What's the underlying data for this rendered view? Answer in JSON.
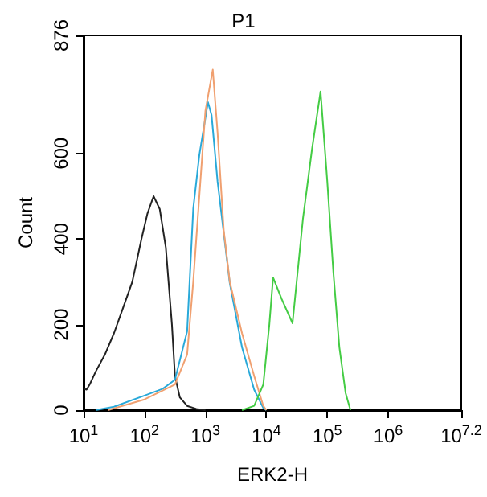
{
  "chart_data": {
    "type": "line",
    "title": "P1",
    "xlabel": "ERK2-H",
    "ylabel": "Count",
    "log": "x",
    "grid": false,
    "marker": "none",
    "line_style": "solid",
    "xlim": [
      10,
      15848932
    ],
    "ylim": [
      0,
      876
    ],
    "xticks": [
      {
        "value": 10,
        "label": "10$^{1}$"
      },
      {
        "value": 100,
        "label": "10$^{2}$"
      },
      {
        "value": 1000,
        "label": "10$^{3}$"
      },
      {
        "value": 10000,
        "label": "10$^{4}$"
      },
      {
        "value": 100000,
        "label": "10$^{5}$"
      },
      {
        "value": 1000000,
        "label": "10$^{6}$"
      },
      {
        "value": 15848932,
        "label": "10$^{7.2}$"
      }
    ],
    "yticks": [
      0,
      200,
      400,
      600,
      876
    ],
    "series": [
      {
        "color": "#222222",
        "x": [
          10,
          11.2,
          12.6,
          15.8,
          22.4,
          31.6,
          44.7,
          63.1,
          89.1,
          112,
          141,
          178,
          224,
          282,
          316,
          380,
          501,
          708,
          1000
        ],
        "values": [
          50,
          48,
          60,
          90,
          130,
          180,
          240,
          300,
          400,
          460,
          500,
          470,
          380,
          200,
          80,
          30,
          10,
          3,
          0
        ]
      },
      {
        "color": "#29a9d9",
        "x": [
          15.8,
          31.6,
          100,
          200,
          316,
          501,
          631,
          794,
          1100,
          1260,
          1580,
          2510,
          3980,
          6310,
          8910,
          10000
        ],
        "values": [
          0,
          8,
          34,
          50,
          71,
          184,
          471,
          596,
          720,
          690,
          535,
          297,
          147,
          48,
          5,
          0
        ]
      },
      {
        "color": "#f0a070",
        "x": [
          25.1,
          100,
          316,
          501,
          631,
          794,
          1000,
          1320,
          1580,
          2000,
          2510,
          3980,
          6310,
          8910,
          10000
        ],
        "values": [
          0,
          25,
          60,
          130,
          300,
          500,
          700,
          796,
          650,
          420,
          300,
          180,
          80,
          10,
          0
        ]
      },
      {
        "color": "#44cc44",
        "x": [
          3980,
          6310,
          8910,
          11200,
          12900,
          17800,
          26900,
          39800,
          56200,
          77600,
          100000,
          126000,
          158000,
          200000,
          240000
        ],
        "values": [
          0,
          10,
          60,
          200,
          310,
          260,
          203,
          446,
          610,
          745,
          535,
          322,
          147,
          40,
          0
        ]
      }
    ]
  }
}
